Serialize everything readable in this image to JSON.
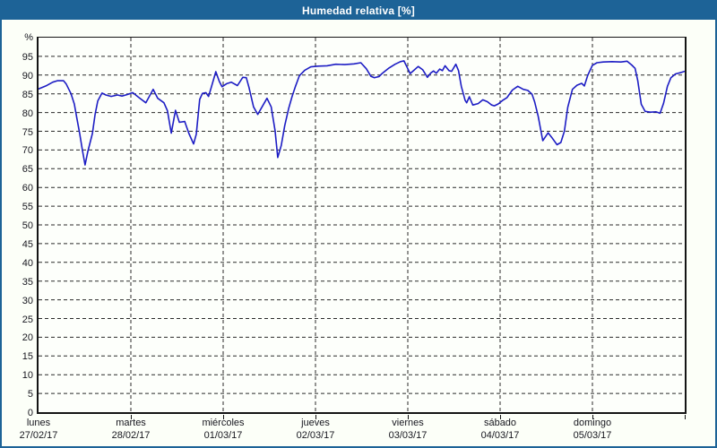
{
  "window": {
    "title": "Humedad relativa [%]"
  },
  "colors": {
    "frame": "#1d6397",
    "window_bg": "#fcfff8",
    "plot_bg": "#fdfffb",
    "grid": "#2a2a2a",
    "axis": "#141414",
    "text": "#16161e",
    "line": "#1d1dc4"
  },
  "chart_data": {
    "type": "line",
    "title": "Humedad relativa [%]",
    "ylabel": "%",
    "ylim": [
      0,
      100
    ],
    "grid": "dashed",
    "legend_position": "none",
    "y_ticks": [
      95,
      90,
      85,
      80,
      75,
      70,
      65,
      60,
      55,
      50,
      45,
      40,
      35,
      30,
      25,
      20,
      15,
      10,
      5,
      0
    ],
    "x_days": [
      {
        "name": "lunes",
        "date": "27/02/17"
      },
      {
        "name": "martes",
        "date": "28/02/17"
      },
      {
        "name": "miércoles",
        "date": "01/03/17"
      },
      {
        "name": "jueves",
        "date": "02/03/17"
      },
      {
        "name": "viernes",
        "date": "03/03/17"
      },
      {
        "name": "sábado",
        "date": "04/03/17"
      },
      {
        "name": "domingo",
        "date": "05/03/17"
      }
    ],
    "x_hours_total": 168,
    "series": [
      {
        "name": "Humedad relativa",
        "unit": "%",
        "points": [
          [
            0,
            86.3
          ],
          [
            1.9,
            87.1
          ],
          [
            3.7,
            88.1
          ],
          [
            4.9,
            88.5
          ],
          [
            6.5,
            88.5
          ],
          [
            7.2,
            87.6
          ],
          [
            8.4,
            85.1
          ],
          [
            9.3,
            82.3
          ],
          [
            10,
            78.3
          ],
          [
            10.7,
            74.4
          ],
          [
            11.4,
            70
          ],
          [
            12.1,
            66
          ],
          [
            12.8,
            69.5
          ],
          [
            14,
            74.4
          ],
          [
            14.7,
            79.5
          ],
          [
            15.4,
            83.1
          ],
          [
            16.5,
            85.2
          ],
          [
            17.5,
            84.7
          ],
          [
            18.9,
            84.3
          ],
          [
            20.5,
            84.7
          ],
          [
            21.7,
            84.4
          ],
          [
            23.1,
            84.8
          ],
          [
            24.5,
            85.3
          ],
          [
            26.1,
            84
          ],
          [
            27.9,
            82.6
          ],
          [
            29.8,
            86.2
          ],
          [
            31,
            83.8
          ],
          [
            32.6,
            82.6
          ],
          [
            33.5,
            80.5
          ],
          [
            34.5,
            74.5
          ],
          [
            35.6,
            80.6
          ],
          [
            36.6,
            77.4
          ],
          [
            38,
            77.6
          ],
          [
            39.1,
            74.4
          ],
          [
            40.3,
            71.6
          ],
          [
            41,
            74.2
          ],
          [
            41.9,
            83.5
          ],
          [
            42.6,
            85.1
          ],
          [
            43.5,
            85.3
          ],
          [
            44.2,
            84.3
          ],
          [
            44.9,
            86.7
          ],
          [
            46.1,
            90.9
          ],
          [
            47,
            88.3
          ],
          [
            47.7,
            86.9
          ],
          [
            48.9,
            87.7
          ],
          [
            50.1,
            88.1
          ],
          [
            51.7,
            87.2
          ],
          [
            53.1,
            89.4
          ],
          [
            54,
            89.3
          ],
          [
            54.7,
            86.7
          ],
          [
            55.9,
            81.5
          ],
          [
            57,
            79.5
          ],
          [
            58.4,
            82
          ],
          [
            59.4,
            83.8
          ],
          [
            60.5,
            81.5
          ],
          [
            61.5,
            75.2
          ],
          [
            62.2,
            68
          ],
          [
            63.1,
            71.2
          ],
          [
            64,
            76.5
          ],
          [
            65,
            81
          ],
          [
            65.9,
            84.2
          ],
          [
            66.8,
            87
          ],
          [
            67.8,
            89.8
          ],
          [
            69.2,
            91.3
          ],
          [
            70.8,
            92.2
          ],
          [
            72.7,
            92.4
          ],
          [
            75,
            92.5
          ],
          [
            77.3,
            92.9
          ],
          [
            79.6,
            92.8
          ],
          [
            82,
            93
          ],
          [
            83.8,
            93.3
          ],
          [
            85.2,
            91.7
          ],
          [
            86.4,
            89.7
          ],
          [
            87.3,
            89.3
          ],
          [
            88.5,
            89.6
          ],
          [
            89.4,
            90.5
          ],
          [
            91.1,
            91.9
          ],
          [
            92.7,
            92.9
          ],
          [
            94.1,
            93.6
          ],
          [
            95,
            93.8
          ],
          [
            96,
            91.7
          ],
          [
            96.6,
            90.4
          ],
          [
            97.6,
            91.3
          ],
          [
            98.7,
            92.3
          ],
          [
            99.9,
            91.4
          ],
          [
            101.1,
            89.4
          ],
          [
            102,
            90.6
          ],
          [
            102.7,
            91.1
          ],
          [
            103.4,
            90.5
          ],
          [
            104.3,
            91.6
          ],
          [
            105,
            91.2
          ],
          [
            105.7,
            92.5
          ],
          [
            106.7,
            91.2
          ],
          [
            107.4,
            91
          ],
          [
            108.5,
            92.9
          ],
          [
            109.2,
            91.2
          ],
          [
            109.9,
            87
          ],
          [
            110.9,
            83.3
          ],
          [
            111.3,
            82.6
          ],
          [
            112,
            84.2
          ],
          [
            112.9,
            82
          ],
          [
            114.3,
            82.4
          ],
          [
            115.5,
            83.4
          ],
          [
            116.7,
            82.9
          ],
          [
            117.8,
            82
          ],
          [
            118.5,
            81.8
          ],
          [
            119.5,
            82.3
          ],
          [
            120.6,
            83.2
          ],
          [
            121.8,
            84
          ],
          [
            123.2,
            86
          ],
          [
            124.6,
            87
          ],
          [
            126,
            86.2
          ],
          [
            127.2,
            85.9
          ],
          [
            128.3,
            84.9
          ],
          [
            129,
            82.8
          ],
          [
            129.9,
            79
          ],
          [
            131.1,
            72.5
          ],
          [
            132.5,
            74.6
          ],
          [
            133.4,
            73.4
          ],
          [
            134.8,
            71.4
          ],
          [
            135.8,
            72
          ],
          [
            136.7,
            75
          ],
          [
            137.6,
            81.4
          ],
          [
            138.8,
            86.2
          ],
          [
            140,
            87.3
          ],
          [
            141.2,
            87.8
          ],
          [
            141.9,
            87.1
          ],
          [
            142.8,
            90
          ],
          [
            144,
            92.6
          ],
          [
            145.2,
            93.3
          ],
          [
            146.8,
            93.5
          ],
          [
            149.1,
            93.6
          ],
          [
            151.4,
            93.5
          ],
          [
            153,
            93.7
          ],
          [
            154.2,
            92.7
          ],
          [
            155.1,
            91.8
          ],
          [
            155.8,
            88.5
          ],
          [
            156.7,
            82.2
          ],
          [
            157.7,
            80.3
          ],
          [
            159.1,
            80.1
          ],
          [
            160.5,
            80.2
          ],
          [
            161.6,
            79.8
          ],
          [
            162.5,
            82.5
          ],
          [
            163.5,
            87
          ],
          [
            164.4,
            89.3
          ],
          [
            165.6,
            90.3
          ],
          [
            166.7,
            90.6
          ],
          [
            168,
            91
          ]
        ]
      }
    ]
  }
}
